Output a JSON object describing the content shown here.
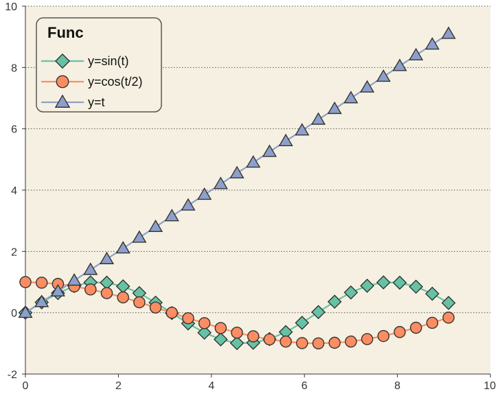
{
  "chart_data": {
    "type": "line",
    "title": "",
    "xlabel": "",
    "ylabel": "",
    "xlim": [
      0,
      10
    ],
    "ylim": [
      -2,
      10
    ],
    "xticks": [
      0,
      2,
      4,
      6,
      8,
      10
    ],
    "yticks": [
      -2,
      0,
      2,
      4,
      6,
      8,
      10
    ],
    "grid": "horizontal dotted",
    "legend": {
      "title": "Func",
      "placement": "top-left"
    },
    "background": "#f5f0e1",
    "x": [
      0.0,
      0.35,
      0.7,
      1.05,
      1.4,
      1.75,
      2.1,
      2.45,
      2.8,
      3.15,
      3.5,
      3.85,
      4.2,
      4.55,
      4.9,
      5.25,
      5.6,
      5.95,
      6.3,
      6.65,
      7.0,
      7.35,
      7.7,
      8.05,
      8.4,
      8.75,
      9.1
    ],
    "series": [
      {
        "name": "y=sin(t)",
        "marker": "diamond",
        "line_color": "#66c2a5",
        "marker_color": "#66c2a5",
        "values": [
          0.0,
          0.34,
          0.64,
          0.87,
          0.99,
          0.98,
          0.86,
          0.64,
          0.33,
          -0.01,
          -0.35,
          -0.65,
          -0.87,
          -0.99,
          -0.98,
          -0.86,
          -0.63,
          -0.33,
          0.02,
          0.36,
          0.66,
          0.88,
          0.99,
          0.98,
          0.85,
          0.62,
          0.32
        ]
      },
      {
        "name": "y=cos(t/2)",
        "marker": "circle",
        "line_color": "#fc8d62",
        "marker_color": "#fc8d62",
        "values": [
          1.0,
          0.98,
          0.94,
          0.86,
          0.76,
          0.64,
          0.5,
          0.34,
          0.17,
          0.0,
          -0.18,
          -0.34,
          -0.5,
          -0.65,
          -0.77,
          -0.87,
          -0.94,
          -0.99,
          -1.0,
          -0.98,
          -0.94,
          -0.86,
          -0.76,
          -0.63,
          -0.49,
          -0.33,
          -0.16
        ]
      },
      {
        "name": "y=t",
        "marker": "triangle",
        "line_color": "#8da0cb",
        "marker_color": "#8da0cb",
        "values": [
          0.0,
          0.35,
          0.7,
          1.05,
          1.4,
          1.75,
          2.1,
          2.45,
          2.8,
          3.15,
          3.5,
          3.85,
          4.2,
          4.55,
          4.9,
          5.25,
          5.6,
          5.95,
          6.3,
          6.65,
          7.0,
          7.35,
          7.7,
          8.05,
          8.4,
          8.75,
          9.1
        ]
      }
    ]
  }
}
